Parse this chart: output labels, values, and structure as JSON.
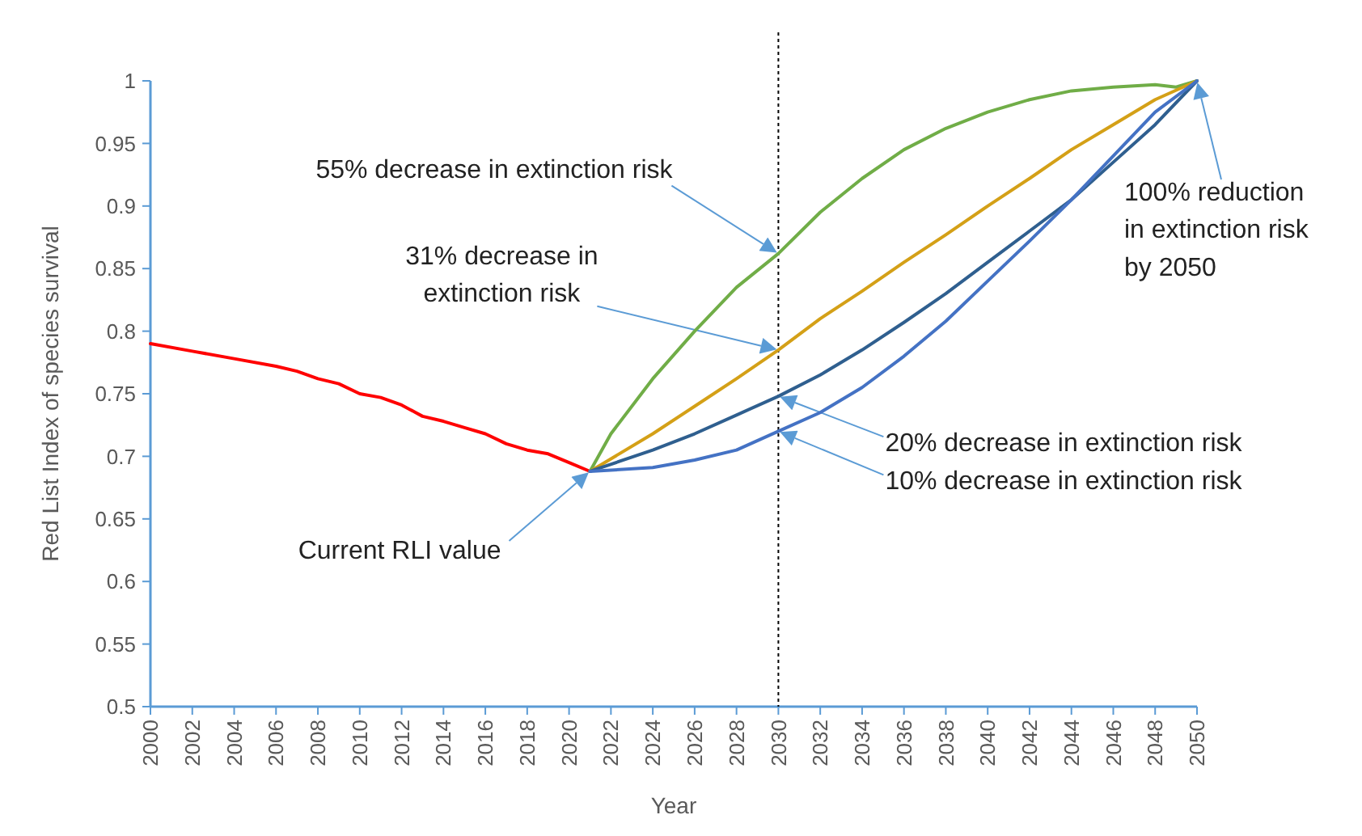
{
  "chart_data": {
    "type": "line",
    "xlabel": "Year",
    "ylabel": "Red List Index of species survival",
    "xlim": [
      2000,
      2050
    ],
    "xticks": [
      2000,
      2002,
      2004,
      2006,
      2008,
      2010,
      2012,
      2014,
      2016,
      2018,
      2020,
      2022,
      2024,
      2026,
      2028,
      2030,
      2032,
      2034,
      2036,
      2038,
      2040,
      2042,
      2044,
      2046,
      2048,
      2050
    ],
    "ylim": [
      0.5,
      1
    ],
    "yticks": [
      0.5,
      0.55,
      0.6,
      0.65,
      0.7,
      0.75,
      0.8,
      0.85,
      0.9,
      0.95,
      1
    ],
    "grid": false,
    "marker": "none",
    "line_style": "solid",
    "series": [
      {
        "color": "#ff0000",
        "x": [
          2000,
          2002,
          2004,
          2006,
          2007,
          2008,
          2009,
          2010,
          2011,
          2012,
          2013,
          2014,
          2015,
          2016,
          2017,
          2018,
          2019,
          2020,
          2021
        ],
        "values": [
          0.79,
          0.784,
          0.778,
          0.772,
          0.768,
          0.762,
          0.758,
          0.75,
          0.747,
          0.741,
          0.732,
          0.728,
          0.723,
          0.718,
          0.71,
          0.705,
          0.702,
          0.695,
          0.688
        ]
      },
      {
        "color": "#70ad47",
        "x": [
          2021,
          2022,
          2024,
          2026,
          2028,
          2030,
          2032,
          2034,
          2036,
          2038,
          2040,
          2042,
          2044,
          2046,
          2048,
          2049,
          2050
        ],
        "values": [
          0.688,
          0.718,
          0.762,
          0.8,
          0.835,
          0.862,
          0.895,
          0.922,
          0.945,
          0.962,
          0.975,
          0.985,
          0.992,
          0.995,
          0.997,
          0.995,
          1
        ]
      },
      {
        "color": "#d4a017",
        "x": [
          2021,
          2024,
          2026,
          2028,
          2030,
          2032,
          2034,
          2036,
          2038,
          2040,
          2042,
          2044,
          2046,
          2048,
          2050
        ],
        "values": [
          0.688,
          0.718,
          0.74,
          0.762,
          0.785,
          0.81,
          0.832,
          0.855,
          0.877,
          0.9,
          0.922,
          0.945,
          0.965,
          0.985,
          1
        ]
      },
      {
        "color": "#2f5f8f",
        "x": [
          2021,
          2024,
          2026,
          2028,
          2030,
          2032,
          2034,
          2036,
          2038,
          2040,
          2042,
          2044,
          2046,
          2048,
          2050
        ],
        "values": [
          0.688,
          0.705,
          0.718,
          0.733,
          0.748,
          0.765,
          0.785,
          0.807,
          0.83,
          0.855,
          0.88,
          0.905,
          0.935,
          0.965,
          1
        ]
      },
      {
        "color": "#4472c4",
        "x": [
          2021,
          2024,
          2026,
          2028,
          2030,
          2032,
          2034,
          2036,
          2038,
          2040,
          2042,
          2044,
          2046,
          2048,
          2050
        ],
        "values": [
          0.688,
          0.691,
          0.697,
          0.705,
          0.72,
          0.735,
          0.755,
          0.78,
          0.808,
          0.84,
          0.872,
          0.905,
          0.94,
          0.975,
          1
        ]
      }
    ],
    "ref_lines": [
      {
        "axis": "x",
        "value": 2030,
        "color": "#000000",
        "line_style": "dotted"
      }
    ],
    "annotations": [
      "55% decrease in extinction risk",
      "31% decrease in\nextinction risk",
      "20% decrease in extinction risk",
      "10% decrease in extinction risk",
      "Current RLI value",
      "100% reduction\nin extinction risk\nby 2050"
    ]
  }
}
